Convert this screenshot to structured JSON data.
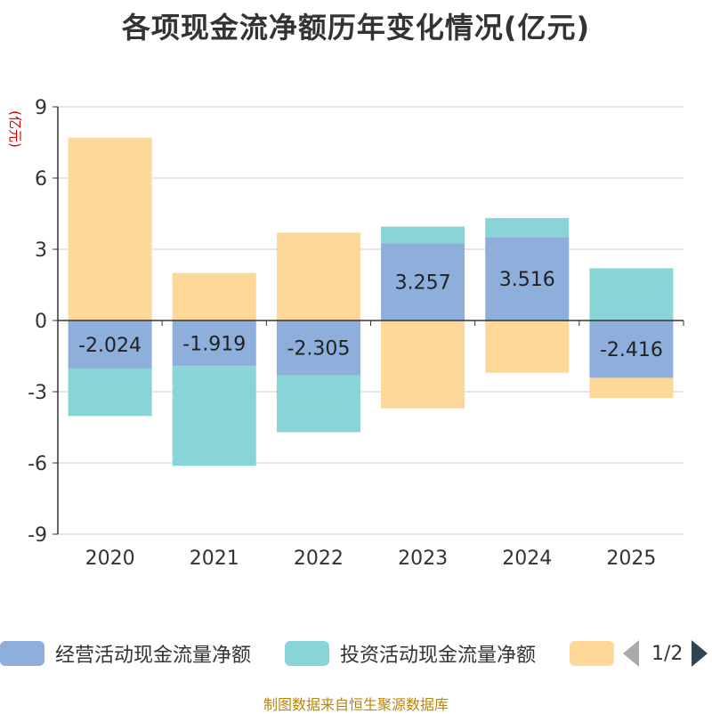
{
  "title": "各项现金流净额历年变化情况(亿元)",
  "source": "制图数据来自恒生聚源数据库",
  "chart_data": {
    "type": "bar",
    "stacked": true,
    "title": "各项现金流净额历年变化情况(亿元)",
    "ylabel": "(亿元)",
    "ylim": [
      -9,
      9
    ],
    "yticks": [
      9,
      6,
      3,
      0,
      -3,
      -6,
      -9
    ],
    "categories": [
      "2020",
      "2021",
      "2022",
      "2023",
      "2024",
      "2025"
    ],
    "series": [
      {
        "name": "经营活动现金流量净额",
        "color": "#8eaedb",
        "show_labels": true,
        "values": [
          -2.024,
          -1.919,
          -2.305,
          3.257,
          3.516,
          -2.416
        ]
      },
      {
        "name": "投资活动现金流量净额",
        "color": "#88d4d7",
        "show_labels": false,
        "values": [
          -2.0,
          -4.2,
          -2.4,
          0.7,
          0.8,
          2.2
        ]
      },
      {
        "name": "",
        "color": "#fdd899",
        "show_labels": false,
        "values": [
          7.7,
          2.0,
          3.7,
          -3.7,
          -2.2,
          -0.85
        ]
      }
    ],
    "label_color": "#222222",
    "grid": true
  },
  "legend": {
    "items": [
      {
        "label": "经营活动现金流量净额",
        "color": "#8eaedb"
      },
      {
        "label": "投资活动现金流量净额",
        "color": "#88d4d7"
      },
      {
        "label": "",
        "color": "#fdd899"
      }
    ],
    "page_text": "1/2"
  }
}
